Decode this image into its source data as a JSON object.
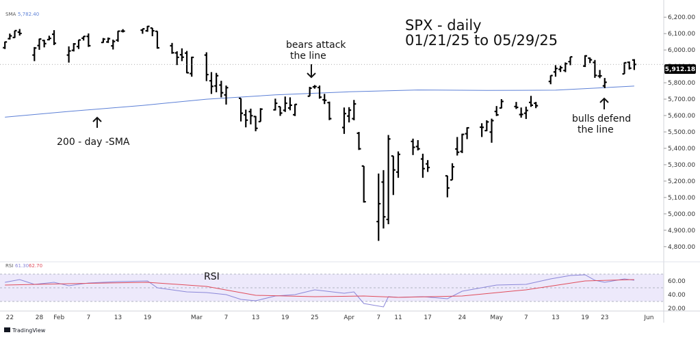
{
  "chart_data": {
    "type": "ohlc",
    "title_lines": [
      "SPX - daily",
      "01/21/25 to 05/29/25"
    ],
    "sma_legend": {
      "label": "SMA",
      "value": "5,782.40"
    },
    "rsi_legend": {
      "label": "RSI",
      "value1": "61.30",
      "value2": "62.70"
    },
    "last_price": 5912.18,
    "last_price_label": "5,912.18",
    "price_axis": {
      "ylim": [
        4720,
        6280
      ],
      "ticks": [
        4800,
        4900,
        5000,
        5100,
        5200,
        5300,
        5400,
        5500,
        5600,
        5700,
        5800,
        5900,
        6000,
        6100,
        6200
      ],
      "tick_labels": [
        "4,800.00",
        "4,900.00",
        "5,000.00",
        "5,100.00",
        "5,200.00",
        "5,300.00",
        "5,400.00",
        "5,500.00",
        "5,600.00",
        "5,700.00",
        "5,800.00",
        "5,900.00",
        "6,000.00",
        "6,100.00",
        "6,200.00"
      ]
    },
    "rsi_axis": {
      "ylim": [
        18,
        85
      ],
      "ticks": [
        20,
        40,
        60
      ],
      "tick_labels": [
        "20.00",
        "40.00",
        "60.00"
      ],
      "band": [
        30,
        70
      ]
    },
    "date_axis": {
      "x_range": [
        "2025-01-20",
        "2025-06-04"
      ],
      "ticks": [
        "2025-01-22",
        "2025-01-28",
        "2025-02-01",
        "2025-02-07",
        "2025-02-13",
        "2025-02-19",
        "2025-03-01",
        "2025-03-07",
        "2025-03-13",
        "2025-03-19",
        "2025-03-25",
        "2025-04-01",
        "2025-04-07",
        "2025-04-11",
        "2025-04-17",
        "2025-04-24",
        "2025-05-01",
        "2025-05-07",
        "2025-05-13",
        "2025-05-19",
        "2025-05-23",
        "2025-06-01"
      ],
      "tick_labels": [
        "22",
        "28",
        "Feb",
        "7",
        "13",
        "19",
        "Mar",
        "7",
        "13",
        "19",
        "25",
        "Apr",
        "7",
        "11",
        "17",
        "24",
        "May",
        "7",
        "13",
        "19",
        "23",
        "Jun"
      ]
    },
    "ohlc": [
      [
        "2025-01-21",
        6014,
        6051,
        6006,
        6049
      ],
      [
        "2025-01-22",
        6069,
        6100,
        6064,
        6086
      ],
      [
        "2025-01-23",
        6076,
        6118,
        6074,
        6118
      ],
      [
        "2025-01-24",
        6109,
        6128,
        6088,
        6101
      ],
      [
        "2025-01-27",
        5969,
        6018,
        5932,
        6012
      ],
      [
        "2025-01-28",
        6027,
        6069,
        6001,
        6067
      ],
      [
        "2025-01-29",
        6058,
        6062,
        6016,
        6039
      ],
      [
        "2025-01-30",
        6063,
        6087,
        6059,
        6071
      ],
      [
        "2025-01-31",
        6096,
        6121,
        6030,
        6041
      ],
      [
        "2025-02-03",
        5969,
        6022,
        5923,
        5994
      ],
      [
        "2025-02-04",
        5998,
        6042,
        5991,
        6037
      ],
      [
        "2025-02-05",
        6021,
        6062,
        6006,
        6061
      ],
      [
        "2025-02-06",
        6072,
        6084,
        6058,
        6083
      ],
      [
        "2025-02-07",
        6083,
        6101,
        6019,
        6026
      ],
      [
        "2025-02-10",
        6046,
        6073,
        6044,
        6066
      ],
      [
        "2025-02-11",
        6049,
        6076,
        6043,
        6069
      ],
      [
        "2025-02-12",
        6025,
        6063,
        6003,
        6052
      ],
      [
        "2025-02-13",
        6060,
        6116,
        6050,
        6115
      ],
      [
        "2025-02-14",
        6115,
        6127,
        6107,
        6115
      ],
      [
        "2025-02-18",
        6121,
        6129,
        6099,
        6129
      ],
      [
        "2025-02-19",
        6117,
        6147,
        6111,
        6144
      ],
      [
        "2025-02-20",
        6134,
        6134,
        6084,
        6117
      ],
      [
        "2025-02-21",
        6114,
        6115,
        6008,
        6013
      ],
      [
        "2025-02-24",
        6026,
        6043,
        5977,
        5983
      ],
      [
        "2025-02-25",
        5982,
        5992,
        5908,
        5955
      ],
      [
        "2025-02-26",
        5971,
        6010,
        5932,
        5956
      ],
      [
        "2025-02-27",
        5981,
        5994,
        5858,
        5861
      ],
      [
        "2025-02-28",
        5856,
        5959,
        5837,
        5955
      ],
      [
        "2025-03-03",
        5969,
        5986,
        5810,
        5850
      ],
      [
        "2025-03-04",
        5812,
        5865,
        5732,
        5778
      ],
      [
        "2025-03-05",
        5781,
        5860,
        5742,
        5843
      ],
      [
        "2025-03-06",
        5786,
        5812,
        5711,
        5739
      ],
      [
        "2025-03-07",
        5726,
        5783,
        5667,
        5770
      ],
      [
        "2025-03-10",
        5705,
        5705,
        5564,
        5614
      ],
      [
        "2025-03-11",
        5604,
        5636,
        5528,
        5572
      ],
      [
        "2025-03-12",
        5624,
        5642,
        5546,
        5599
      ],
      [
        "2025-03-13",
        5594,
        5597,
        5504,
        5522
      ],
      [
        "2025-03-14",
        5563,
        5645,
        5563,
        5639
      ],
      [
        "2025-03-17",
        5635,
        5703,
        5631,
        5675
      ],
      [
        "2025-03-18",
        5654,
        5654,
        5598,
        5615
      ],
      [
        "2025-03-19",
        5632,
        5716,
        5622,
        5675
      ],
      [
        "2025-03-20",
        5646,
        5711,
        5632,
        5663
      ],
      [
        "2025-03-21",
        5605,
        5670,
        5597,
        5668
      ],
      [
        "2025-03-24",
        5718,
        5775,
        5718,
        5767
      ],
      [
        "2025-03-25",
        5775,
        5786,
        5764,
        5777
      ],
      [
        "2025-03-26",
        5771,
        5783,
        5703,
        5712
      ],
      [
        "2025-03-27",
        5696,
        5732,
        5670,
        5693
      ],
      [
        "2025-03-28",
        5679,
        5685,
        5572,
        5581
      ],
      [
        "2025-03-31",
        5527,
        5649,
        5488,
        5612
      ],
      [
        "2025-04-01",
        5597,
        5651,
        5558,
        5633
      ],
      [
        "2025-04-02",
        5581,
        5695,
        5571,
        5671
      ],
      [
        "2025-04-03",
        5492,
        5500,
        5390,
        5397
      ],
      [
        "2025-04-04",
        5292,
        5292,
        5069,
        5074
      ],
      [
        "2025-04-07",
        4953,
        5246,
        4835,
        5062
      ],
      [
        "2025-04-08",
        5194,
        5267,
        4911,
        4982
      ],
      [
        "2025-04-09",
        4966,
        5481,
        4937,
        5457
      ],
      [
        "2025-04-10",
        5353,
        5353,
        5115,
        5268
      ],
      [
        "2025-04-11",
        5255,
        5381,
        5220,
        5363
      ],
      [
        "2025-04-14",
        5442,
        5459,
        5359,
        5406
      ],
      [
        "2025-04-15",
        5411,
        5450,
        5387,
        5397
      ],
      [
        "2025-04-16",
        5335,
        5367,
        5220,
        5276
      ],
      [
        "2025-04-17",
        5305,
        5328,
        5256,
        5283
      ],
      [
        "2025-04-21",
        5232,
        5233,
        5101,
        5158
      ],
      [
        "2025-04-22",
        5207,
        5309,
        5207,
        5287
      ],
      [
        "2025-04-23",
        5396,
        5469,
        5356,
        5376
      ],
      [
        "2025-04-24",
        5381,
        5489,
        5371,
        5485
      ],
      [
        "2025-04-25",
        5489,
        5528,
        5456,
        5525
      ],
      [
        "2025-04-28",
        5529,
        5553,
        5469,
        5528
      ],
      [
        "2025-04-29",
        5508,
        5571,
        5505,
        5561
      ],
      [
        "2025-04-30",
        5499,
        5581,
        5434,
        5569
      ],
      [
        "2025-05-01",
        5625,
        5658,
        5597,
        5604
      ],
      [
        "2025-05-02",
        5646,
        5700,
        5644,
        5686
      ],
      [
        "2025-05-05",
        5655,
        5683,
        5640,
        5650
      ],
      [
        "2025-05-06",
        5606,
        5649,
        5587,
        5607
      ],
      [
        "2025-05-07",
        5614,
        5654,
        5579,
        5631
      ],
      [
        "2025-05-08",
        5680,
        5720,
        5653,
        5663
      ],
      [
        "2025-05-09",
        5675,
        5683,
        5645,
        5660
      ],
      [
        "2025-05-12",
        5808,
        5845,
        5791,
        5844
      ],
      [
        "2025-05-13",
        5866,
        5907,
        5837,
        5887
      ],
      [
        "2025-05-14",
        5882,
        5904,
        5866,
        5892
      ],
      [
        "2025-05-15",
        5875,
        5924,
        5865,
        5916
      ],
      [
        "2025-05-16",
        5929,
        5958,
        5907,
        5958
      ],
      [
        "2025-05-19",
        5902,
        5968,
        5896,
        5964
      ],
      [
        "2025-05-20",
        5950,
        5954,
        5920,
        5940
      ],
      [
        "2025-05-21",
        5924,
        5939,
        5830,
        5845
      ],
      [
        "2025-05-22",
        5841,
        5878,
        5828,
        5842
      ],
      [
        "2025-05-23",
        5781,
        5829,
        5767,
        5803
      ],
      [
        "2025-05-27",
        5854,
        5924,
        5854,
        5922
      ],
      [
        "2025-05-28",
        5925,
        5930,
        5881,
        5889
      ],
      [
        "2025-05-29",
        5939,
        5944,
        5878,
        5912
      ]
    ],
    "sma_200": [
      [
        "2025-01-21",
        5590
      ],
      [
        "2025-02-03",
        5625
      ],
      [
        "2025-02-18",
        5662
      ],
      [
        "2025-03-03",
        5700
      ],
      [
        "2025-03-17",
        5726
      ],
      [
        "2025-04-01",
        5745
      ],
      [
        "2025-04-15",
        5756
      ],
      [
        "2025-04-29",
        5753
      ],
      [
        "2025-05-13",
        5755
      ],
      [
        "2025-05-29",
        5780
      ]
    ],
    "rsi": [
      [
        "2025-01-21",
        58
      ],
      [
        "2025-01-24",
        62
      ],
      [
        "2025-01-27",
        55
      ],
      [
        "2025-01-31",
        58
      ],
      [
        "2025-02-03",
        53
      ],
      [
        "2025-02-07",
        57
      ],
      [
        "2025-02-13",
        59
      ],
      [
        "2025-02-19",
        60
      ],
      [
        "2025-02-21",
        50
      ],
      [
        "2025-02-27",
        44
      ],
      [
        "2025-03-03",
        43
      ],
      [
        "2025-03-07",
        40
      ],
      [
        "2025-03-10",
        33
      ],
      [
        "2025-03-13",
        31
      ],
      [
        "2025-03-17",
        38
      ],
      [
        "2025-03-21",
        40
      ],
      [
        "2025-03-25",
        47
      ],
      [
        "2025-03-31",
        42
      ],
      [
        "2025-04-02",
        44
      ],
      [
        "2025-04-04",
        27
      ],
      [
        "2025-04-08",
        22
      ],
      [
        "2025-04-09",
        37
      ],
      [
        "2025-04-11",
        36
      ],
      [
        "2025-04-16",
        37
      ],
      [
        "2025-04-21",
        34
      ],
      [
        "2025-04-24",
        45
      ],
      [
        "2025-05-01",
        54
      ],
      [
        "2025-05-07",
        55
      ],
      [
        "2025-05-12",
        63
      ],
      [
        "2025-05-16",
        68
      ],
      [
        "2025-05-19",
        69
      ],
      [
        "2025-05-21",
        61
      ],
      [
        "2025-05-23",
        58
      ],
      [
        "2025-05-27",
        63
      ],
      [
        "2025-05-29",
        61
      ]
    ],
    "rsi_ma": [
      [
        "2025-01-21",
        54
      ],
      [
        "2025-02-03",
        56
      ],
      [
        "2025-02-19",
        58
      ],
      [
        "2025-03-03",
        52
      ],
      [
        "2025-03-13",
        39
      ],
      [
        "2025-03-25",
        37
      ],
      [
        "2025-04-04",
        38
      ],
      [
        "2025-04-11",
        36
      ],
      [
        "2025-04-24",
        38
      ],
      [
        "2025-05-07",
        47
      ],
      [
        "2025-05-19",
        60
      ],
      [
        "2025-05-29",
        62
      ]
    ],
    "annotations": [
      {
        "id": "bears",
        "lines": [
          "bears attack",
          "the line"
        ],
        "arrow": "down"
      },
      {
        "id": "sma200",
        "lines": [
          "200 - day -SMA"
        ],
        "arrow": "up"
      },
      {
        "id": "bulls",
        "lines": [
          "bulls defend",
          "the line"
        ],
        "arrow": "up"
      },
      {
        "id": "rsi",
        "lines": [
          "RSI"
        ],
        "arrow": "none"
      }
    ],
    "colors": {
      "bar": "#000000",
      "sma": "#5b7fd6",
      "rsi": "#8a86d8",
      "rsi_ma": "#e04b5a",
      "rsi_band": "#ede9fb",
      "last_price_bg": "#000000"
    },
    "footer": "TradingView"
  }
}
